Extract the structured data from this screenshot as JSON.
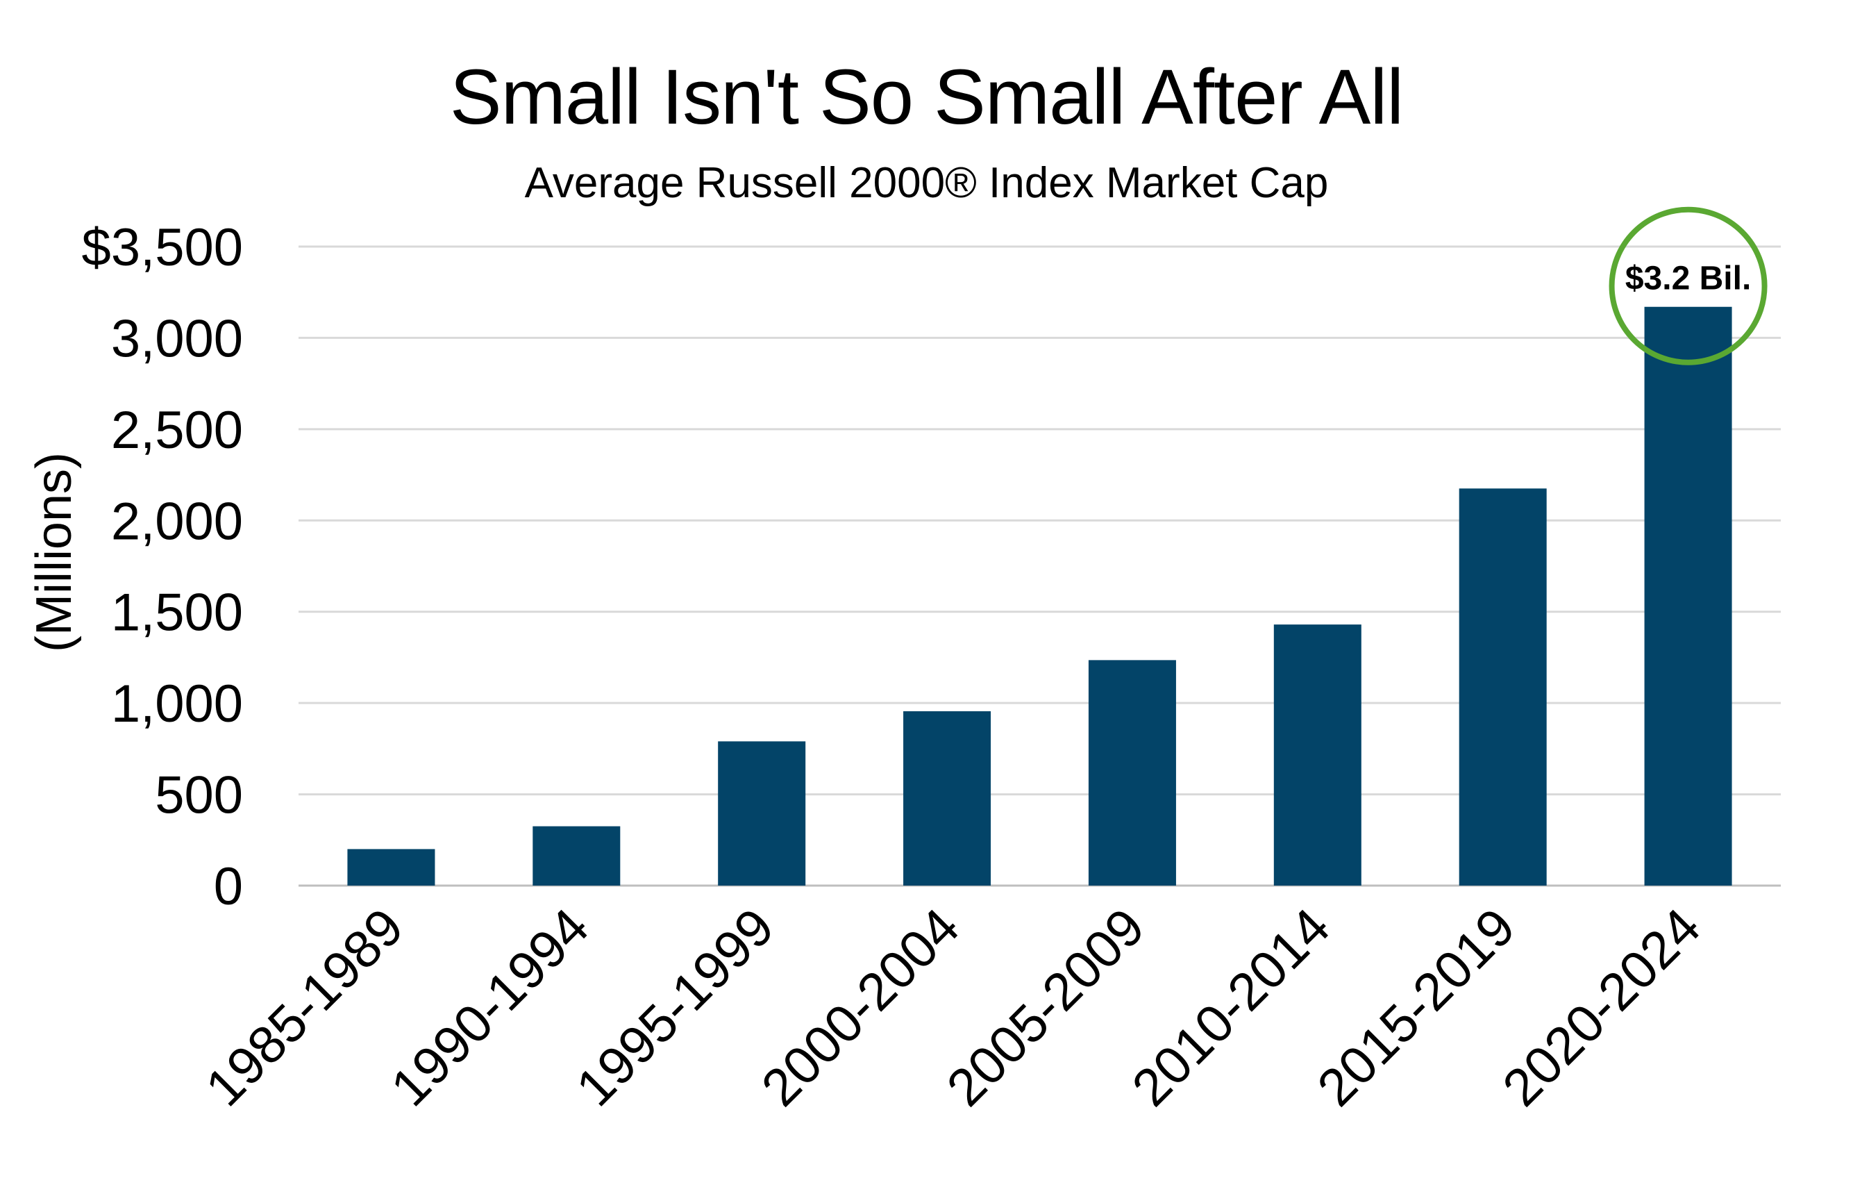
{
  "chart_data": {
    "type": "bar",
    "title": "Small Isn't So Small After All",
    "subtitle": "Average Russell 2000® Index Market Cap",
    "ylabel": "(Millions)",
    "xlabel": "",
    "categories": [
      "1985-1989",
      "1990-1994",
      "1995-1999",
      "2000-2004",
      "2005-2009",
      "2010-2014",
      "2015-2019",
      "2020-2024"
    ],
    "values": [
      200,
      325,
      790,
      955,
      1235,
      1430,
      2175,
      3170
    ],
    "ylim": [
      0,
      3500
    ],
    "yticks": [
      "0",
      "500",
      "1,000",
      "1,500",
      "2,000",
      "2,500",
      "3,000",
      "$3,500"
    ],
    "grid": true,
    "legend": "none",
    "colors": {
      "bar": "#034468",
      "grid": "#d9d9d9",
      "callout": "#5aa832"
    },
    "annotation": {
      "category": "2020-2024",
      "text": "$3.2 Bil."
    }
  }
}
